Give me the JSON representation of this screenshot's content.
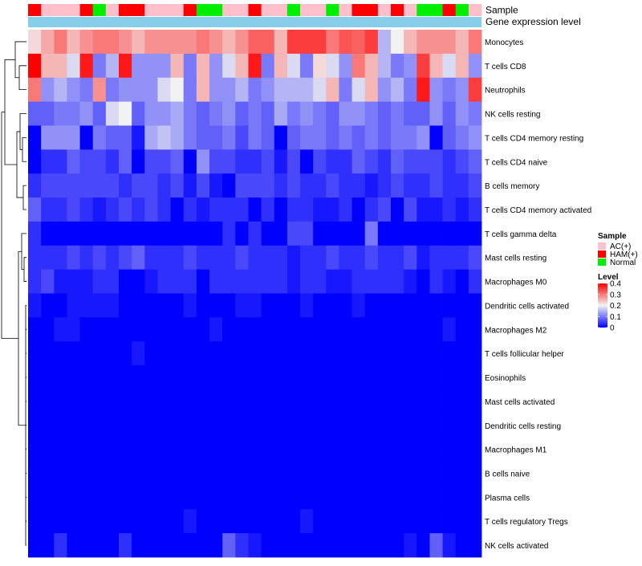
{
  "chart_data": {
    "type": "heatmap",
    "title": "",
    "annotation_labels": {
      "sample": "Sample",
      "gene_expression": "Gene expression level"
    },
    "rows": [
      "Monocytes",
      "T cells CD8",
      "Neutrophils",
      "NK cells resting",
      "T cells CD4 memory resting",
      "T cells CD4 naive",
      "B cells memory",
      "T cells CD4 memory activated",
      "T cells gamma delta",
      "Mast cells resting",
      "Macrophages M0",
      "Dendritic cells activated",
      "Macrophages M2",
      "T cells follicular helper",
      "Eosinophils",
      "Mast cells activated",
      "Dendritic cells resting",
      "Macrophages M1",
      "B cells naive",
      "Plasma cells",
      "T cells regulatory  Tregs",
      "NK cells activated"
    ],
    "sample_groups": [
      "HAM(+)",
      "AC(+)",
      "AC(+)",
      "AC(+)",
      "HAM(+)",
      "Normal",
      "AC(+)",
      "HAM(+)",
      "HAM(+)",
      "AC(+)",
      "AC(+)",
      "AC(+)",
      "HAM(+)",
      "Normal",
      "Normal",
      "AC(+)",
      "AC(+)",
      "HAM(+)",
      "AC(+)",
      "AC(+)",
      "Normal",
      "AC(+)",
      "AC(+)",
      "Normal",
      "AC(+)",
      "HAM(+)",
      "HAM(+)",
      "AC(+)",
      "HAM(+)",
      "AC(+)",
      "Normal",
      "Normal",
      "HAM(+)",
      "Normal",
      "AC(+)"
    ],
    "values": [
      [
        0.22,
        0.26,
        0.3,
        0.25,
        0.28,
        0.3,
        0.3,
        0.28,
        0.25,
        0.28,
        0.28,
        0.28,
        0.28,
        0.3,
        0.28,
        0.25,
        0.28,
        0.32,
        0.32,
        0.25,
        0.35,
        0.35,
        0.35,
        0.3,
        0.33,
        0.32,
        0.35,
        0.15,
        0.2,
        0.25,
        0.28,
        0.28,
        0.28,
        0.25,
        0.3
      ],
      [
        0.4,
        0.25,
        0.25,
        0.18,
        0.38,
        0.1,
        0.15,
        0.38,
        0.12,
        0.12,
        0.12,
        0.25,
        0.1,
        0.25,
        0.12,
        0.18,
        0.25,
        0.38,
        0.1,
        0.25,
        0.18,
        0.1,
        0.22,
        0.18,
        0.12,
        0.3,
        0.25,
        0.15,
        0.1,
        0.12,
        0.35,
        0.25,
        0.18,
        0.25,
        0.12
      ],
      [
        0.3,
        0.12,
        0.15,
        0.12,
        0.1,
        0.28,
        0.1,
        0.12,
        0.12,
        0.12,
        0.18,
        0.2,
        0.1,
        0.25,
        0.12,
        0.12,
        0.15,
        0.1,
        0.12,
        0.15,
        0.15,
        0.15,
        0.18,
        0.25,
        0.1,
        0.18,
        0.25,
        0.12,
        0.15,
        0.1,
        0.38,
        0.12,
        0.1,
        0.12,
        0.35
      ],
      [
        0.08,
        0.08,
        0.1,
        0.1,
        0.12,
        0.08,
        0.18,
        0.2,
        0.08,
        0.12,
        0.12,
        0.14,
        0.1,
        0.08,
        0.1,
        0.12,
        0.08,
        0.1,
        0.08,
        0.14,
        0.1,
        0.12,
        0.1,
        0.08,
        0.12,
        0.12,
        0.1,
        0.08,
        0.1,
        0.08,
        0.08,
        0.12,
        0.08,
        0.12,
        0.1
      ],
      [
        0.0,
        0.12,
        0.12,
        0.12,
        0.0,
        0.1,
        0.08,
        0.08,
        0.02,
        0.14,
        0.16,
        0.14,
        0.1,
        0.08,
        0.08,
        0.1,
        0.06,
        0.1,
        0.08,
        0.0,
        0.08,
        0.1,
        0.1,
        0.08,
        0.1,
        0.08,
        0.1,
        0.08,
        0.1,
        0.1,
        0.12,
        0.0,
        0.08,
        0.1,
        0.12
      ],
      [
        0.0,
        0.04,
        0.04,
        0.08,
        0.06,
        0.06,
        0.04,
        0.08,
        0.0,
        0.06,
        0.06,
        0.08,
        0.0,
        0.12,
        0.06,
        0.06,
        0.04,
        0.04,
        0.06,
        0.02,
        0.06,
        0.0,
        0.06,
        0.04,
        0.04,
        0.08,
        0.06,
        0.04,
        0.08,
        0.06,
        0.06,
        0.06,
        0.04,
        0.06,
        0.08
      ],
      [
        0.04,
        0.06,
        0.06,
        0.06,
        0.06,
        0.06,
        0.06,
        0.04,
        0.06,
        0.06,
        0.04,
        0.06,
        0.02,
        0.06,
        0.02,
        0.0,
        0.06,
        0.06,
        0.06,
        0.04,
        0.06,
        0.04,
        0.04,
        0.06,
        0.04,
        0.04,
        0.02,
        0.04,
        0.06,
        0.04,
        0.04,
        0.06,
        0.04,
        0.04,
        0.06
      ],
      [
        0.08,
        0.04,
        0.04,
        0.06,
        0.04,
        0.02,
        0.04,
        0.06,
        0.04,
        0.06,
        0.04,
        0.0,
        0.04,
        0.02,
        0.04,
        0.04,
        0.04,
        0.0,
        0.04,
        0.0,
        0.04,
        0.04,
        0.02,
        0.02,
        0.04,
        0.0,
        0.04,
        0.06,
        0.0,
        0.06,
        0.02,
        0.02,
        0.04,
        0.02,
        0.04
      ],
      [
        0.04,
        0.0,
        0.0,
        0.0,
        0.0,
        0.0,
        0.0,
        0.0,
        0.0,
        0.0,
        0.0,
        0.0,
        0.0,
        0.0,
        0.0,
        0.04,
        0.0,
        0.04,
        0.0,
        0.0,
        0.06,
        0.06,
        0.0,
        0.0,
        0.0,
        0.0,
        0.1,
        0.0,
        0.0,
        0.0,
        0.0,
        0.0,
        0.0,
        0.0,
        0.0
      ],
      [
        0.04,
        0.04,
        0.04,
        0.06,
        0.04,
        0.06,
        0.04,
        0.06,
        0.08,
        0.04,
        0.04,
        0.04,
        0.06,
        0.04,
        0.04,
        0.04,
        0.06,
        0.04,
        0.04,
        0.04,
        0.02,
        0.04,
        0.04,
        0.06,
        0.04,
        0.04,
        0.06,
        0.04,
        0.04,
        0.06,
        0.02,
        0.04,
        0.04,
        0.04,
        0.06
      ],
      [
        0.04,
        0.06,
        0.02,
        0.02,
        0.02,
        0.04,
        0.04,
        0.0,
        0.0,
        0.02,
        0.04,
        0.04,
        0.04,
        0.0,
        0.04,
        0.04,
        0.04,
        0.04,
        0.04,
        0.04,
        0.02,
        0.04,
        0.04,
        0.02,
        0.02,
        0.04,
        0.04,
        0.04,
        0.04,
        0.02,
        0.0,
        0.04,
        0.02,
        0.0,
        0.04
      ],
      [
        0.02,
        0.0,
        0.0,
        0.02,
        0.02,
        0.02,
        0.02,
        0.0,
        0.0,
        0.0,
        0.0,
        0.0,
        0.02,
        0.0,
        0.0,
        0.0,
        0.02,
        0.02,
        0.0,
        0.0,
        0.0,
        0.02,
        0.0,
        0.0,
        0.0,
        0.02,
        0.0,
        0.0,
        0.0,
        0.0,
        0.0,
        0.0,
        0.0,
        0.0,
        0.0
      ],
      [
        0.0,
        0.0,
        0.02,
        0.02,
        0.0,
        0.0,
        0.0,
        0.0,
        0.0,
        0.0,
        0.0,
        0.0,
        0.0,
        0.0,
        0.02,
        0.0,
        0.0,
        0.0,
        0.0,
        0.0,
        0.0,
        0.0,
        0.0,
        0.0,
        0.0,
        0.0,
        0.0,
        0.0,
        0.0,
        0.0,
        0.0,
        0.0,
        0.02,
        0.0,
        0.0
      ],
      [
        0.0,
        0.0,
        0.0,
        0.0,
        0.0,
        0.0,
        0.0,
        0.0,
        0.02,
        0.0,
        0.0,
        0.0,
        0.0,
        0.0,
        0.0,
        0.0,
        0.0,
        0.0,
        0.0,
        0.0,
        0.0,
        0.0,
        0.0,
        0.0,
        0.0,
        0.0,
        0.0,
        0.0,
        0.0,
        0.0,
        0.0,
        0.0,
        0.0,
        0.0,
        0.0
      ],
      [
        0.0,
        0.0,
        0.0,
        0.0,
        0.0,
        0.0,
        0.0,
        0.0,
        0.0,
        0.0,
        0.0,
        0.0,
        0.0,
        0.0,
        0.0,
        0.0,
        0.0,
        0.0,
        0.0,
        0.0,
        0.0,
        0.0,
        0.0,
        0.0,
        0.0,
        0.0,
        0.0,
        0.0,
        0.0,
        0.0,
        0.0,
        0.0,
        0.0,
        0.0,
        0.0
      ],
      [
        0.0,
        0.0,
        0.0,
        0.0,
        0.0,
        0.0,
        0.0,
        0.0,
        0.0,
        0.0,
        0.0,
        0.0,
        0.0,
        0.0,
        0.0,
        0.0,
        0.0,
        0.0,
        0.0,
        0.0,
        0.0,
        0.0,
        0.0,
        0.0,
        0.0,
        0.0,
        0.0,
        0.0,
        0.0,
        0.0,
        0.0,
        0.0,
        0.0,
        0.0,
        0.0
      ],
      [
        0.0,
        0.0,
        0.0,
        0.0,
        0.0,
        0.0,
        0.0,
        0.0,
        0.0,
        0.0,
        0.0,
        0.0,
        0.0,
        0.0,
        0.0,
        0.0,
        0.0,
        0.0,
        0.0,
        0.0,
        0.0,
        0.0,
        0.0,
        0.0,
        0.0,
        0.0,
        0.0,
        0.0,
        0.0,
        0.0,
        0.0,
        0.0,
        0.0,
        0.0,
        0.0
      ],
      [
        0.0,
        0.0,
        0.0,
        0.0,
        0.0,
        0.0,
        0.0,
        0.0,
        0.0,
        0.0,
        0.0,
        0.0,
        0.0,
        0.0,
        0.0,
        0.0,
        0.0,
        0.0,
        0.0,
        0.0,
        0.0,
        0.0,
        0.0,
        0.0,
        0.0,
        0.0,
        0.0,
        0.0,
        0.0,
        0.0,
        0.0,
        0.0,
        0.0,
        0.0,
        0.0
      ],
      [
        0.0,
        0.0,
        0.0,
        0.0,
        0.0,
        0.0,
        0.0,
        0.0,
        0.0,
        0.0,
        0.0,
        0.0,
        0.0,
        0.0,
        0.0,
        0.0,
        0.0,
        0.0,
        0.0,
        0.0,
        0.0,
        0.0,
        0.0,
        0.0,
        0.0,
        0.0,
        0.0,
        0.0,
        0.0,
        0.0,
        0.0,
        0.0,
        0.0,
        0.0,
        0.0
      ],
      [
        0.0,
        0.0,
        0.0,
        0.0,
        0.0,
        0.0,
        0.0,
        0.0,
        0.0,
        0.0,
        0.0,
        0.0,
        0.0,
        0.0,
        0.0,
        0.0,
        0.0,
        0.0,
        0.0,
        0.0,
        0.0,
        0.0,
        0.0,
        0.0,
        0.0,
        0.0,
        0.0,
        0.0,
        0.0,
        0.0,
        0.0,
        0.0,
        0.0,
        0.0,
        0.0
      ],
      [
        0.0,
        0.0,
        0.0,
        0.0,
        0.0,
        0.0,
        0.0,
        0.0,
        0.0,
        0.0,
        0.0,
        0.0,
        0.02,
        0.0,
        0.0,
        0.0,
        0.0,
        0.0,
        0.0,
        0.0,
        0.0,
        0.02,
        0.0,
        0.0,
        0.0,
        0.0,
        0.0,
        0.0,
        0.0,
        0.0,
        0.0,
        0.0,
        0.0,
        0.0,
        0.0
      ],
      [
        0.0,
        0.0,
        0.04,
        0.0,
        0.0,
        0.0,
        0.0,
        0.04,
        0.0,
        0.0,
        0.0,
        0.0,
        0.0,
        0.0,
        0.0,
        0.08,
        0.04,
        0.02,
        0.0,
        0.0,
        0.0,
        0.0,
        0.0,
        0.0,
        0.0,
        0.0,
        0.0,
        0.0,
        0.0,
        0.02,
        0.0,
        0.08,
        0.02,
        0.0,
        0.0
      ]
    ],
    "legend": {
      "sample_title": "Sample",
      "groups": [
        {
          "label": "AC(+)",
          "color": "#FFC0CB"
        },
        {
          "label": "HAM(+)",
          "color": "#FF0000"
        },
        {
          "label": "Normal",
          "color": "#00EE00"
        }
      ],
      "level_title": "Level",
      "level_ticks": [
        0.4,
        0.3,
        0.2,
        0.1,
        0
      ],
      "level_min": 0,
      "level_max": 0.4
    },
    "colors": {
      "low": "#0000FF",
      "mid": "#F2F2F2",
      "high": "#FF0000",
      "gene_expression_bar": "#87CEEB",
      "dendrogram": "#000000"
    }
  }
}
